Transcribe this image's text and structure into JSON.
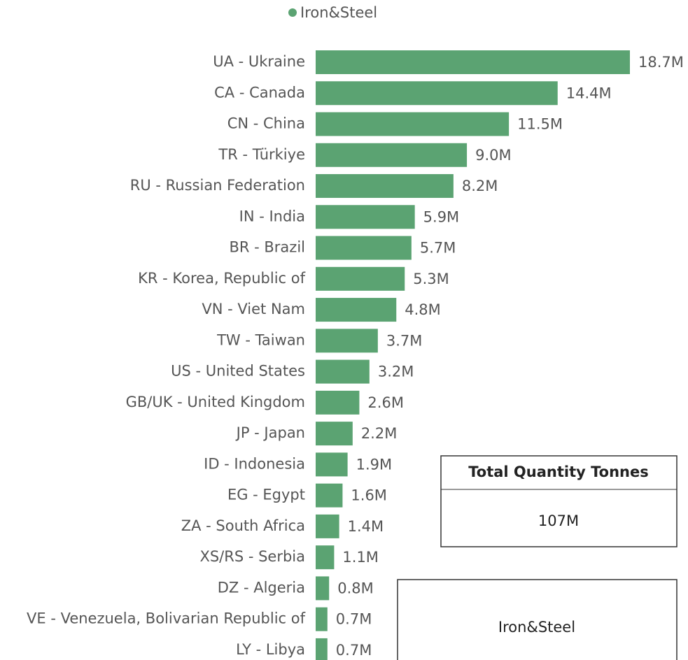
{
  "chart_data": {
    "type": "bar",
    "orientation": "horizontal",
    "color": "#5ba372",
    "legend": {
      "position": "top",
      "entries": [
        "Iron&Steel"
      ]
    },
    "categories": [
      "UA - Ukraine",
      "CA - Canada",
      "CN - China",
      "TR - Türkiye",
      "RU - Russian Federation",
      "IN - India",
      "BR - Brazil",
      "KR - Korea, Republic of",
      "VN - Viet Nam",
      "TW - Taiwan",
      "US - United States",
      "GB/UK - United Kingdom",
      "JP - Japan",
      "ID - Indonesia",
      "EG - Egypt",
      "ZA - South Africa",
      "XS/RS - Serbia",
      "DZ - Algeria",
      "VE - Venezuela, Bolivarian Republic of",
      "LY - Libya"
    ],
    "values": [
      18.7,
      14.4,
      11.5,
      9.0,
      8.2,
      5.9,
      5.7,
      5.3,
      4.8,
      3.7,
      3.2,
      2.6,
      2.2,
      1.9,
      1.6,
      1.4,
      1.1,
      0.8,
      0.7,
      0.7
    ],
    "value_labels": [
      "18.7M",
      "14.4M",
      "11.5M",
      "9.0M",
      "8.2M",
      "5.9M",
      "5.7M",
      "5.3M",
      "4.8M",
      "3.7M",
      "3.2M",
      "2.6M",
      "2.2M",
      "1.9M",
      "1.6M",
      "1.4M",
      "1.1M",
      "0.8M",
      "0.7M",
      "0.7M"
    ]
  },
  "cards": [
    {
      "title": "Total Quantity Tonnes",
      "value": "107M"
    },
    {
      "value": "Iron&Steel"
    }
  ]
}
